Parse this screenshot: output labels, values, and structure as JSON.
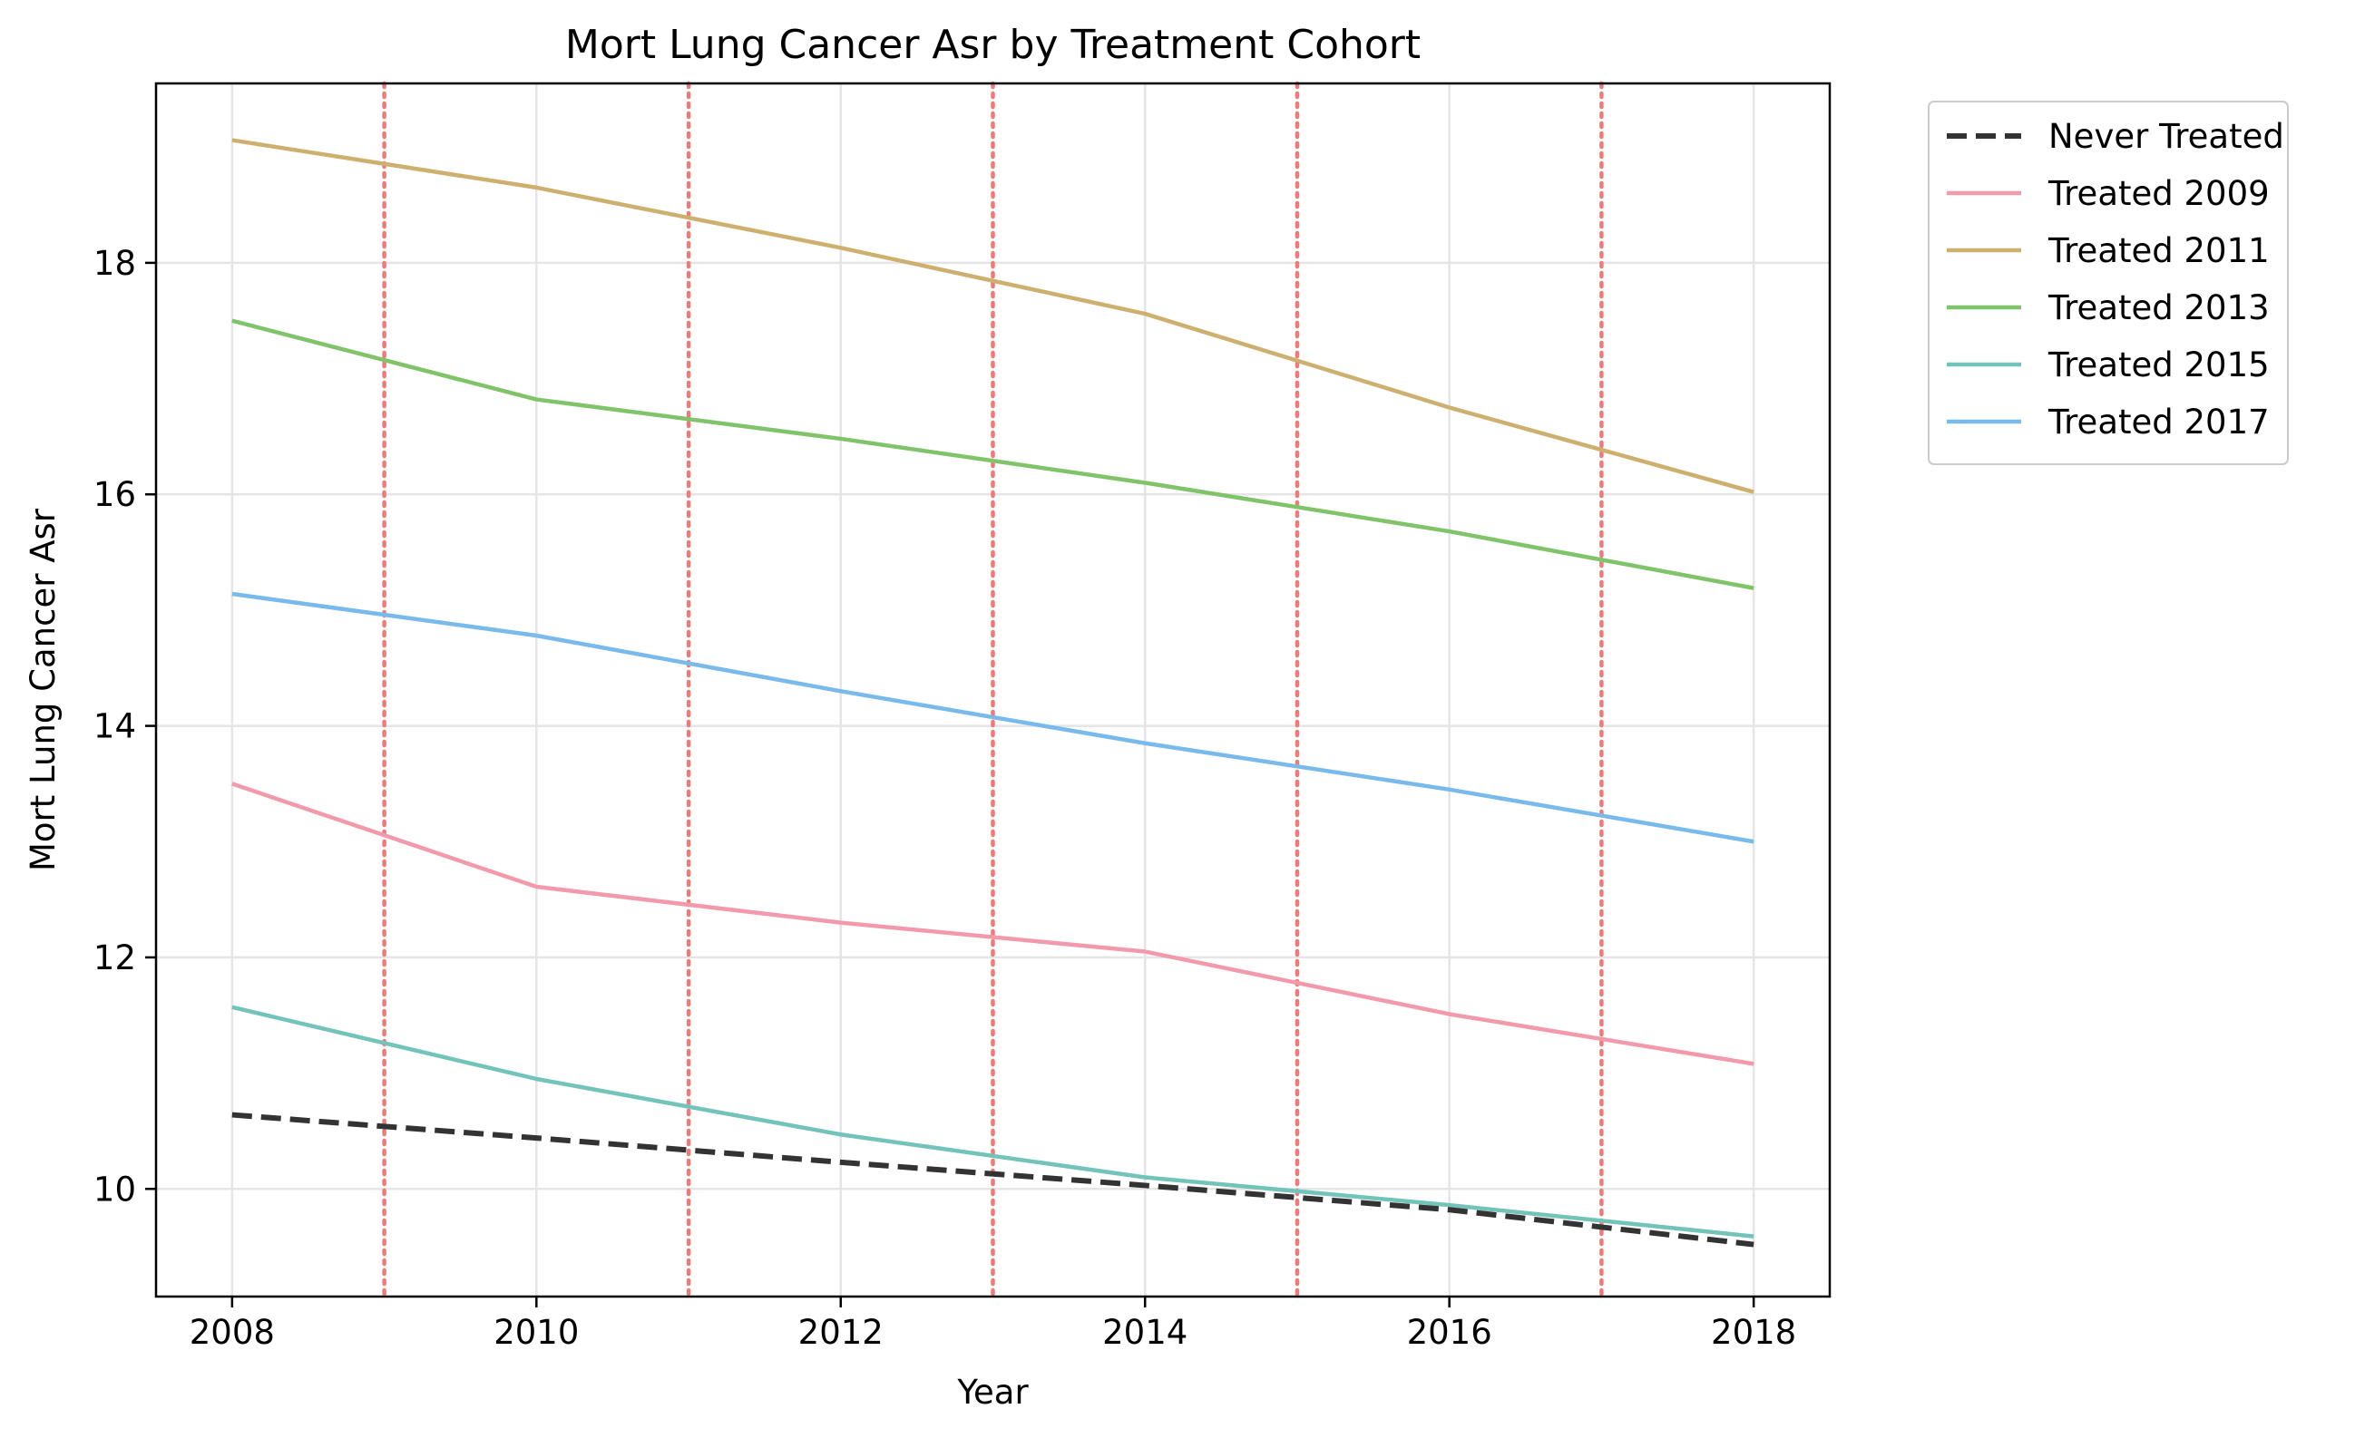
{
  "chart_data": {
    "type": "line",
    "title": "Mort Lung Cancer Asr by Treatment Cohort",
    "xlabel": "Year",
    "ylabel": "Mort Lung Cancer Asr",
    "xlim": [
      2007.5,
      2018.5
    ],
    "ylim": [
      9.07,
      19.55
    ],
    "x_ticks": [
      2008,
      2010,
      2012,
      2014,
      2016,
      2018
    ],
    "y_ticks": [
      10,
      12,
      14,
      16,
      18
    ],
    "grid": true,
    "legend_position": "outside-top-right",
    "x": [
      2008,
      2010,
      2012,
      2014,
      2016,
      2018
    ],
    "treatment_years": [
      2009,
      2011,
      2013,
      2015,
      2017
    ],
    "treatment_line_color": "#f07a7a",
    "series": [
      {
        "name": "Never Treated",
        "color": "#333333",
        "dashed": true,
        "x": [
          2008,
          2010,
          2012,
          2014,
          2016,
          2018
        ],
        "values": [
          10.64,
          10.44,
          10.23,
          10.03,
          9.82,
          9.52
        ]
      },
      {
        "name": "Treated 2009",
        "color": "#f29aab",
        "dashed": false,
        "x": [
          2008,
          2010,
          2012,
          2014,
          2016,
          2018
        ],
        "values": [
          13.5,
          12.61,
          12.3,
          12.05,
          11.51,
          11.08
        ]
      },
      {
        "name": "Treated 2011",
        "color": "#cdb06e",
        "dashed": false,
        "x": [
          2008,
          2010,
          2012,
          2014,
          2016,
          2018
        ],
        "values": [
          19.06,
          18.65,
          18.13,
          17.56,
          16.75,
          16.02
        ]
      },
      {
        "name": "Treated 2013",
        "color": "#80c46a",
        "dashed": false,
        "x": [
          2008,
          2010,
          2012,
          2014,
          2016,
          2018
        ],
        "values": [
          17.5,
          16.82,
          16.48,
          16.1,
          15.68,
          15.19
        ]
      },
      {
        "name": "Treated 2015",
        "color": "#72c3b9",
        "dashed": false,
        "x": [
          2008,
          2010,
          2012,
          2014,
          2016,
          2018
        ],
        "values": [
          11.57,
          10.95,
          10.47,
          10.1,
          9.86,
          9.59
        ]
      },
      {
        "name": "Treated 2017",
        "color": "#77baeb",
        "dashed": false,
        "x": [
          2008,
          2010,
          2012,
          2014,
          2016,
          2018
        ],
        "values": [
          15.14,
          14.78,
          14.3,
          13.85,
          13.45,
          13.0
        ]
      }
    ]
  }
}
